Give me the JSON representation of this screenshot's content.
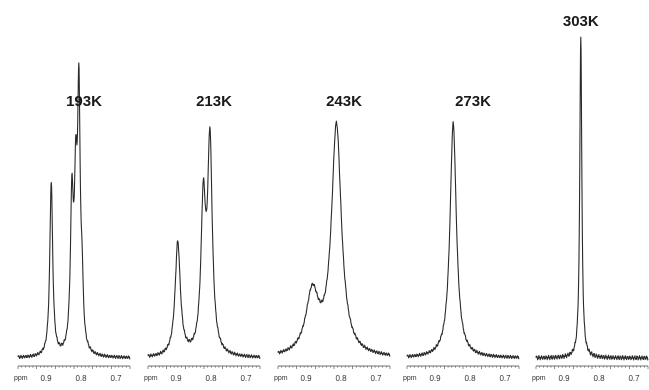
{
  "chart_data": [
    {
      "type": "line",
      "temperature_label": "193K",
      "xlabel": "ppm",
      "xlim": [
        0.98,
        0.66
      ],
      "xticks": [
        {
          "value": 0.9,
          "label": "0.9"
        },
        {
          "value": 0.8,
          "label": "0.8"
        },
        {
          "value": 0.7,
          "label": "0.7"
        }
      ],
      "peaks": [
        {
          "center": 0.885,
          "height": 0.72,
          "width": 0.005
        },
        {
          "center": 0.826,
          "height": 0.6,
          "width": 0.005
        },
        {
          "center": 0.815,
          "height": 0.6,
          "width": 0.005
        },
        {
          "center": 0.806,
          "height": 1.0,
          "width": 0.0045
        },
        {
          "center": 0.797,
          "height": 0.22,
          "width": 0.004
        }
      ]
    },
    {
      "type": "line",
      "temperature_label": "213K",
      "xlabel": "ppm",
      "xlim": [
        0.98,
        0.66
      ],
      "xticks": [
        {
          "value": 0.9,
          "label": "0.9"
        },
        {
          "value": 0.8,
          "label": "0.8"
        },
        {
          "value": 0.7,
          "label": "0.7"
        }
      ],
      "peaks": [
        {
          "center": 0.895,
          "height": 0.47,
          "width": 0.009
        },
        {
          "center": 0.822,
          "height": 0.6,
          "width": 0.008
        },
        {
          "center": 0.803,
          "height": 0.86,
          "width": 0.008
        }
      ]
    },
    {
      "type": "line",
      "temperature_label": "243K",
      "xlabel": "ppm",
      "xlim": [
        0.98,
        0.66
      ],
      "xticks": [
        {
          "value": 0.9,
          "label": "0.9"
        },
        {
          "value": 0.8,
          "label": "0.8"
        },
        {
          "value": 0.7,
          "label": "0.7"
        }
      ],
      "peaks": [
        {
          "center": 0.882,
          "height": 0.25,
          "width": 0.022
        },
        {
          "center": 0.813,
          "height": 0.95,
          "width": 0.017
        }
      ]
    },
    {
      "type": "line",
      "temperature_label": "273K",
      "xlabel": "ppm",
      "xlim": [
        0.98,
        0.66
      ],
      "xticks": [
        {
          "value": 0.9,
          "label": "0.9"
        },
        {
          "value": 0.8,
          "label": "0.8"
        },
        {
          "value": 0.7,
          "label": "0.7"
        }
      ],
      "peaks": [
        {
          "center": 0.848,
          "height": 0.97,
          "width": 0.011
        }
      ]
    },
    {
      "type": "line",
      "temperature_label": "303K",
      "xlabel": "ppm",
      "xlim": [
        0.98,
        0.66
      ],
      "xticks": [
        {
          "value": 0.9,
          "label": "0.9"
        },
        {
          "value": 0.8,
          "label": "0.8"
        },
        {
          "value": 0.7,
          "label": "0.7"
        }
      ],
      "peaks": [
        {
          "center": 0.852,
          "height": 1.0,
          "width": 0.0035
        }
      ]
    }
  ]
}
